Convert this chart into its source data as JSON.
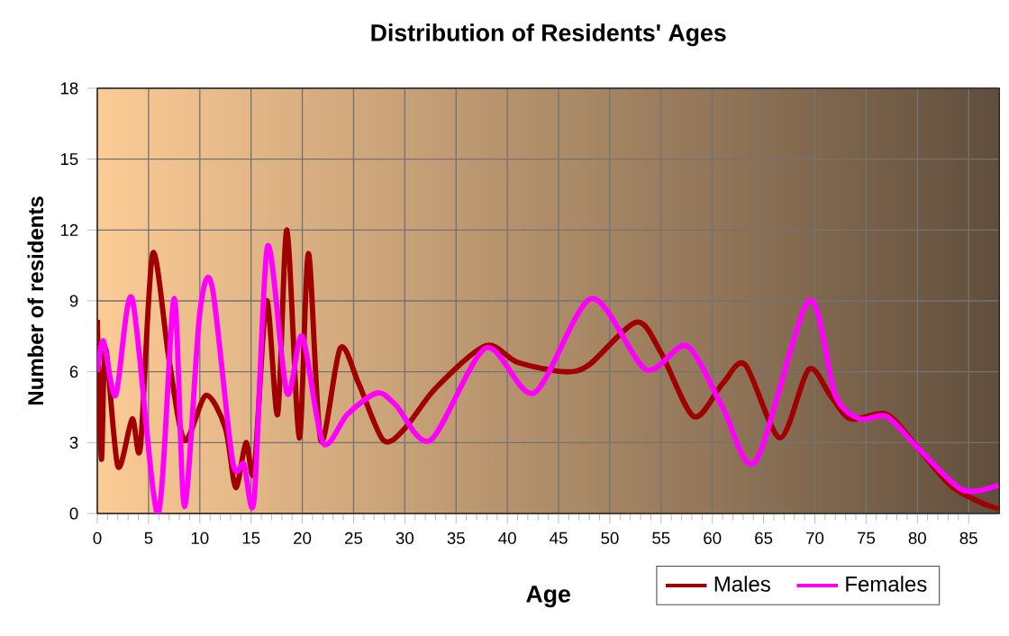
{
  "chart_data": {
    "type": "line",
    "title": "Distribution of Residents' Ages",
    "xlabel": "Age",
    "ylabel": "Number of residents",
    "series": [
      {
        "name": "Males",
        "color": "#a00000",
        "x": [
          0,
          0.4,
          0.8,
          2,
          3.4,
          4.2,
          5.4,
          7,
          8.5,
          10.6,
          12.5,
          13.5,
          14.5,
          15.3,
          16.5,
          17.6,
          18.5,
          19.7,
          20.6,
          21.8,
          23.7,
          25.5,
          27.9,
          30,
          33,
          37.9,
          41,
          45.6,
          48,
          52.6,
          55,
          58.2,
          61,
          63.2,
          66.6,
          69.4,
          71.5,
          73.5,
          77,
          80,
          83.2,
          86,
          87.9
        ],
        "values": [
          8.2,
          2.3,
          7,
          2,
          4,
          2.8,
          11,
          6.5,
          3.1,
          5,
          3.6,
          1.1,
          3,
          1.8,
          9,
          4.2,
          12,
          3.2,
          11,
          3.1,
          7,
          5.5,
          3.1,
          3.6,
          5.3,
          7.1,
          6.4,
          6,
          6.3,
          8.1,
          6.8,
          4.1,
          5.5,
          6.3,
          3.2,
          6.1,
          5,
          4,
          4.2,
          2.8,
          1.2,
          0.5,
          0.2
        ]
      },
      {
        "name": "Females",
        "color": "#ff00ff",
        "x": [
          0,
          0.6,
          1.8,
          3.4,
          5.9,
          7.5,
          8.5,
          10,
          11.2,
          13.2,
          14.3,
          15.3,
          16.6,
          18.5,
          20,
          22,
          24.4,
          27.3,
          29.1,
          32.5,
          37.9,
          42.6,
          48.2,
          53.5,
          57.5,
          61,
          64.2,
          69.4,
          72,
          74.4,
          77,
          80,
          84.4,
          87.9
        ],
        "values": [
          6,
          7.3,
          5,
          9.1,
          0,
          9.1,
          0.3,
          8.5,
          9.6,
          2.2,
          2.1,
          0.6,
          11.3,
          5.1,
          7.5,
          3,
          4.2,
          5.1,
          4.6,
          3.1,
          7,
          5.1,
          9.1,
          6.1,
          7.1,
          4.5,
          2.2,
          9,
          5,
          4,
          4.1,
          2.8,
          1,
          1.2
        ]
      }
    ],
    "xlim": [
      0,
      88
    ],
    "ylim": [
      0,
      18
    ],
    "xticks": [
      0,
      5,
      10,
      15,
      20,
      25,
      30,
      35,
      40,
      45,
      50,
      55,
      60,
      65,
      70,
      75,
      80,
      85
    ],
    "yticks": [
      0,
      3,
      6,
      9,
      12,
      15,
      18
    ],
    "grid": true,
    "legend": "bottom right"
  }
}
